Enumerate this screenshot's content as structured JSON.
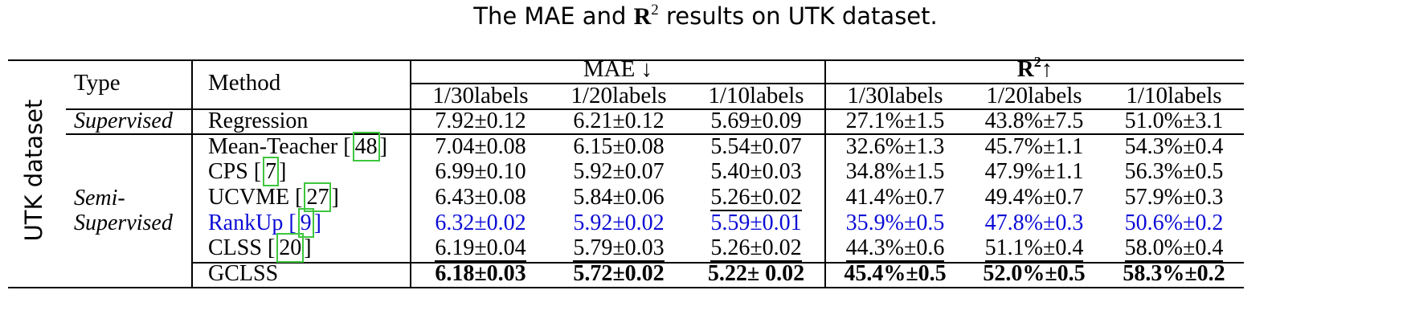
{
  "caption": {
    "prefix": "The MAE and ",
    "r2_symbol": "R",
    "r2_sup": "2",
    "suffix": " results on UTK dataset."
  },
  "side_label": "UTK dataset",
  "headers": {
    "type": "Type",
    "method": "Method",
    "mae_group": "MAE ↓",
    "r2_symbol": "R",
    "r2_sup": "2",
    "r2_arrow": "↑",
    "splits": [
      "1/30labels",
      "1/20labels",
      "1/10labels",
      "1/30labels",
      "1/20labels",
      "1/10labels"
    ]
  },
  "types": {
    "supervised": "Supervised",
    "semi_line1": "Semi-",
    "semi_line2": "Supervised"
  },
  "rows": [
    {
      "method": "Regression",
      "cite": "",
      "style": "normal",
      "values": [
        "7.92±0.12",
        "6.21±0.12",
        "5.69±0.09",
        "27.1%±1.5",
        "43.8%±7.5",
        "51.0%±3.1"
      ]
    },
    {
      "method": "Mean-Teacher ",
      "cite": "48",
      "style": "normal",
      "values": [
        "7.04±0.08",
        "6.15±0.08",
        "5.54±0.07",
        "32.6%±1.3",
        "45.7%±1.1",
        "54.3%±0.4"
      ]
    },
    {
      "method": "CPS ",
      "cite": "7",
      "style": "normal",
      "values": [
        "6.99±0.10",
        "5.92±0.07",
        "5.40±0.03",
        "34.8%±1.5",
        "47.9%±1.1",
        "56.3%±0.5"
      ]
    },
    {
      "method": "UCVME ",
      "cite": "27",
      "style": "normal",
      "values": [
        "6.43±0.08",
        "5.84±0.06",
        "5.26±0.02",
        "41.4%±0.7",
        "49.4%±0.7",
        "57.9%±0.3"
      ]
    },
    {
      "method": "RankUp ",
      "cite": "9",
      "style": "blue",
      "values": [
        "6.32±0.02",
        "5.92±0.02",
        "5.59±0.01",
        "35.9%±0.5",
        "47.8%±0.3",
        "50.6%±0.2"
      ]
    },
    {
      "method": "CLSS ",
      "cite": "20",
      "style": "normal",
      "values": [
        "6.19±0.04",
        "5.79±0.03",
        "5.26±0.02",
        "44.3%±0.6",
        "51.1%±0.4",
        "58.0%±0.4"
      ]
    },
    {
      "method": "GCLSS",
      "cite": "",
      "style": "bold",
      "values": [
        "6.18±0.03",
        "5.72±0.02",
        "5.22± 0.02",
        "45.4%±0.5",
        "52.0%±0.5",
        "58.3%±0.2"
      ]
    }
  ],
  "colors": {
    "highlight_blue": "#0b0bd6",
    "citation_box": "#3ec63e"
  }
}
